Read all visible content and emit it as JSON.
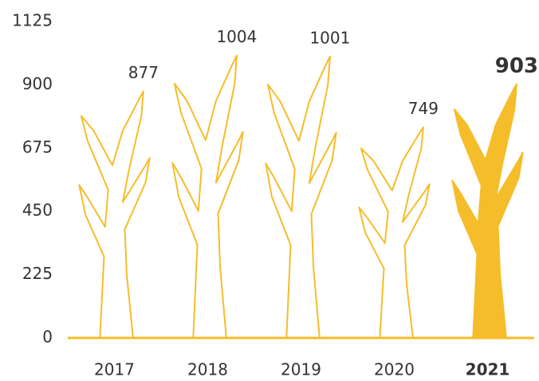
{
  "chart_data": {
    "type": "tree-bar",
    "categories": [
      "2017",
      "2018",
      "2019",
      "2020",
      "2021"
    ],
    "values": [
      877,
      1004,
      1001,
      749,
      903
    ],
    "color": "#f5bd2a",
    "highlight_index": 4,
    "ylim": [
      0,
      1125
    ],
    "yticks": [
      0,
      225,
      450,
      675,
      900,
      1125
    ]
  }
}
